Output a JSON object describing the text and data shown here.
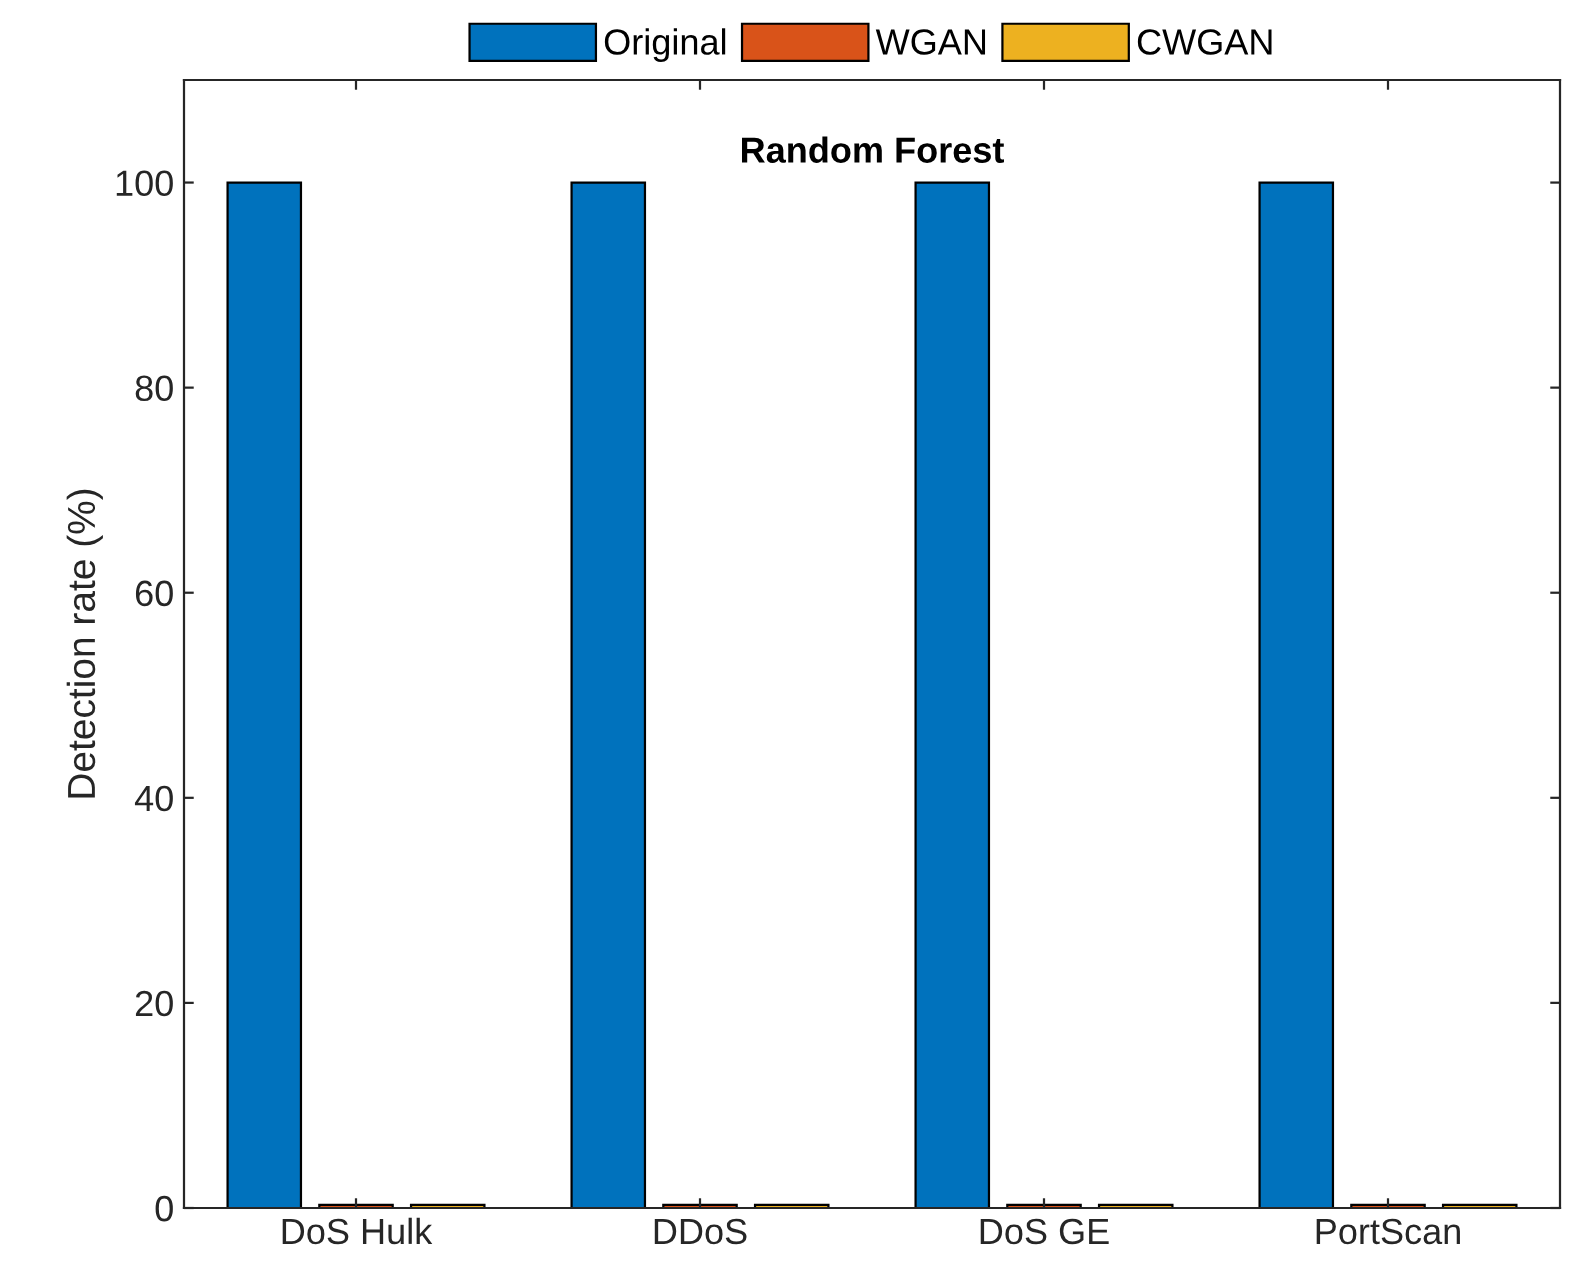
{
  "chart_data": {
    "type": "bar",
    "title": "Random Forest",
    "ylabel": "Detection rate (%)",
    "categories": [
      "DoS Hulk",
      "DDoS",
      "DoS GE",
      "PortScan"
    ],
    "series": [
      {
        "name": "Original",
        "color": "#0072bd",
        "values": [
          100,
          100,
          100,
          100
        ]
      },
      {
        "name": "WGAN",
        "color": "#d95319",
        "values": [
          0.3,
          0.3,
          0.3,
          0.3
        ]
      },
      {
        "name": "CWGAN",
        "color": "#edb120",
        "values": [
          0.3,
          0.3,
          0.3,
          0.3
        ]
      }
    ],
    "ylim": [
      0,
      110
    ],
    "yticks": [
      0,
      20,
      40,
      60,
      80,
      100
    ],
    "grid": false,
    "legend": "top"
  }
}
